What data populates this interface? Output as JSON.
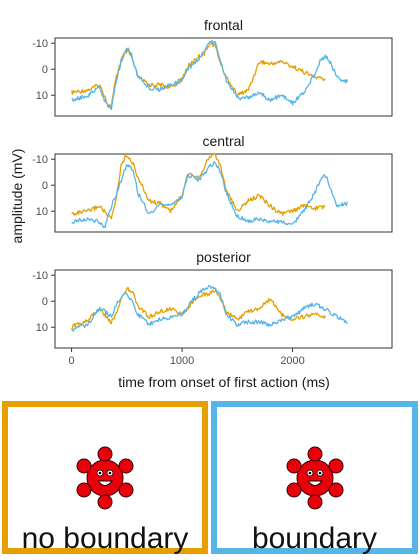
{
  "chart_data": {
    "type": "line",
    "facets": [
      "frontal",
      "central",
      "posterior"
    ],
    "xlabel": "time from onset of first action (ms)",
    "ylabel": "amplitude (mV)",
    "xlim": [
      -150,
      2900
    ],
    "ylim": [
      -12,
      18
    ],
    "y_reversed": true,
    "xticks": [
      0,
      1000,
      2000
    ],
    "yticks": [
      -10,
      0,
      10
    ],
    "grid": false,
    "series": [
      {
        "name": "no boundary",
        "color": "#E69F00",
        "x_range": [
          0,
          2300
        ],
        "panels": {
          "frontal": [
            [
              0,
              9
            ],
            [
              150,
              8
            ],
            [
              250,
              6
            ],
            [
              300,
              10
            ],
            [
              330,
              14
            ],
            [
              360,
              14
            ],
            [
              400,
              4
            ],
            [
              450,
              -4
            ],
            [
              500,
              -7
            ],
            [
              540,
              -5
            ],
            [
              600,
              3
            ],
            [
              700,
              6
            ],
            [
              800,
              6
            ],
            [
              900,
              7
            ],
            [
              1000,
              4
            ],
            [
              1050,
              -1
            ],
            [
              1100,
              -3
            ],
            [
              1150,
              -5
            ],
            [
              1200,
              -6
            ],
            [
              1250,
              -10
            ],
            [
              1300,
              -9
            ],
            [
              1350,
              -2
            ],
            [
              1400,
              3
            ],
            [
              1500,
              10
            ],
            [
              1600,
              8
            ],
            [
              1700,
              -3
            ],
            [
              1800,
              -2
            ],
            [
              1900,
              -3
            ],
            [
              2000,
              -1
            ],
            [
              2100,
              1
            ],
            [
              2200,
              3
            ],
            [
              2300,
              4
            ]
          ],
          "central": [
            [
              0,
              11
            ],
            [
              150,
              10
            ],
            [
              250,
              8
            ],
            [
              300,
              10
            ],
            [
              330,
              12
            ],
            [
              360,
              13
            ],
            [
              400,
              6
            ],
            [
              450,
              -8
            ],
            [
              500,
              -12
            ],
            [
              560,
              -8
            ],
            [
              600,
              -3
            ],
            [
              700,
              6
            ],
            [
              800,
              7
            ],
            [
              900,
              10
            ],
            [
              1000,
              4
            ],
            [
              1050,
              -5
            ],
            [
              1150,
              -3
            ],
            [
              1250,
              -11
            ],
            [
              1300,
              -12
            ],
            [
              1350,
              -7
            ],
            [
              1400,
              2
            ],
            [
              1500,
              10
            ],
            [
              1600,
              6
            ],
            [
              1700,
              4
            ],
            [
              1800,
              8
            ],
            [
              1900,
              11
            ],
            [
              2000,
              10
            ],
            [
              2100,
              8
            ],
            [
              2200,
              9
            ],
            [
              2300,
              8
            ]
          ],
          "posterior": [
            [
              0,
              10
            ],
            [
              150,
              7
            ],
            [
              250,
              3
            ],
            [
              300,
              5
            ],
            [
              330,
              7
            ],
            [
              360,
              8
            ],
            [
              400,
              5
            ],
            [
              450,
              -1
            ],
            [
              500,
              -5
            ],
            [
              560,
              -3
            ],
            [
              600,
              2
            ],
            [
              700,
              6
            ],
            [
              800,
              4
            ],
            [
              900,
              3
            ],
            [
              1000,
              5
            ],
            [
              1050,
              3
            ],
            [
              1150,
              -2
            ],
            [
              1250,
              -3
            ],
            [
              1300,
              -4
            ],
            [
              1350,
              -1
            ],
            [
              1400,
              4
            ],
            [
              1500,
              7
            ],
            [
              1600,
              4
            ],
            [
              1700,
              3
            ],
            [
              1800,
              -1
            ],
            [
              1900,
              5
            ],
            [
              2000,
              7
            ],
            [
              2100,
              6
            ],
            [
              2200,
              5
            ],
            [
              2300,
              6
            ]
          ]
        }
      },
      {
        "name": "boundary",
        "color": "#56B4E9",
        "x_range": [
          0,
          2500
        ],
        "panels": {
          "frontal": [
            [
              0,
              12
            ],
            [
              150,
              10
            ],
            [
              250,
              7
            ],
            [
              300,
              12
            ],
            [
              330,
              14
            ],
            [
              360,
              16
            ],
            [
              400,
              5
            ],
            [
              450,
              -3
            ],
            [
              500,
              -8
            ],
            [
              540,
              -6
            ],
            [
              600,
              3
            ],
            [
              700,
              7
            ],
            [
              800,
              8
            ],
            [
              900,
              6
            ],
            [
              1000,
              4
            ],
            [
              1050,
              0
            ],
            [
              1100,
              -2
            ],
            [
              1150,
              -4
            ],
            [
              1200,
              -7
            ],
            [
              1250,
              -11
            ],
            [
              1300,
              -10
            ],
            [
              1350,
              -3
            ],
            [
              1400,
              4
            ],
            [
              1500,
              11
            ],
            [
              1600,
              11
            ],
            [
              1700,
              9
            ],
            [
              1800,
              12
            ],
            [
              1900,
              10
            ],
            [
              2000,
              13
            ],
            [
              2100,
              9
            ],
            [
              2200,
              2
            ],
            [
              2250,
              -3
            ],
            [
              2300,
              -5
            ],
            [
              2350,
              -2
            ],
            [
              2400,
              3
            ],
            [
              2500,
              5
            ]
          ],
          "central": [
            [
              0,
              14
            ],
            [
              150,
              13
            ],
            [
              250,
              14
            ],
            [
              300,
              16
            ],
            [
              330,
              12
            ],
            [
              360,
              8
            ],
            [
              400,
              4
            ],
            [
              450,
              -2
            ],
            [
              500,
              -8
            ],
            [
              560,
              -6
            ],
            [
              600,
              3
            ],
            [
              700,
              11
            ],
            [
              800,
              8
            ],
            [
              900,
              7
            ],
            [
              1000,
              5
            ],
            [
              1050,
              -4
            ],
            [
              1150,
              -2
            ],
            [
              1250,
              -7
            ],
            [
              1300,
              -9
            ],
            [
              1350,
              -5
            ],
            [
              1400,
              3
            ],
            [
              1500,
              12
            ],
            [
              1600,
              14
            ],
            [
              1700,
              13
            ],
            [
              1800,
              14
            ],
            [
              1900,
              14
            ],
            [
              2000,
              15
            ],
            [
              2100,
              10
            ],
            [
              2200,
              3
            ],
            [
              2250,
              -2
            ],
            [
              2300,
              -4
            ],
            [
              2350,
              2
            ],
            [
              2400,
              8
            ],
            [
              2500,
              7
            ]
          ],
          "posterior": [
            [
              0,
              11
            ],
            [
              150,
              9
            ],
            [
              250,
              3
            ],
            [
              300,
              4
            ],
            [
              330,
              5
            ],
            [
              360,
              6
            ],
            [
              400,
              2
            ],
            [
              450,
              -2
            ],
            [
              500,
              -3
            ],
            [
              560,
              1
            ],
            [
              600,
              5
            ],
            [
              700,
              9
            ],
            [
              800,
              7
            ],
            [
              900,
              6
            ],
            [
              1000,
              5
            ],
            [
              1050,
              2
            ],
            [
              1150,
              -3
            ],
            [
              1250,
              -6
            ],
            [
              1300,
              -5
            ],
            [
              1350,
              -2
            ],
            [
              1400,
              5
            ],
            [
              1500,
              9
            ],
            [
              1600,
              8
            ],
            [
              1700,
              8
            ],
            [
              1800,
              9
            ],
            [
              1900,
              7
            ],
            [
              2000,
              6
            ],
            [
              2100,
              3
            ],
            [
              2200,
              1
            ],
            [
              2300,
              3
            ],
            [
              2400,
              6
            ],
            [
              2500,
              8
            ]
          ]
        }
      }
    ]
  },
  "legend": {
    "items": [
      {
        "label": "no boundary",
        "color": "#E69F00",
        "icon": "red-smiley-blob-icon"
      },
      {
        "label": "boundary",
        "color": "#56B4E9",
        "icon": "red-smiley-blob-icon"
      }
    ]
  }
}
